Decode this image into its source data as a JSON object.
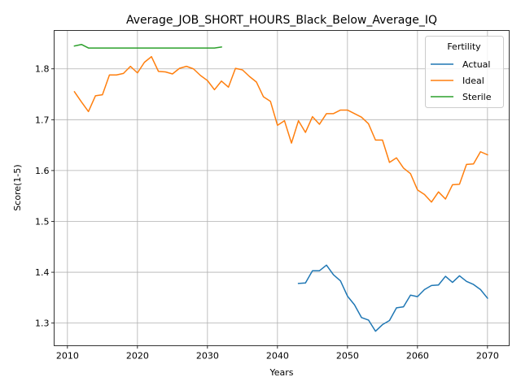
{
  "chart_data": {
    "type": "line",
    "title": "Average_JOB_SHORT_HOURS_Black_Below_Average_IQ",
    "xlabel": "Years",
    "ylabel": "Score(1-5)",
    "xlim": [
      2008.1,
      2073.1
    ],
    "ylim": [
      1.2555,
      1.8755
    ],
    "xticks": [
      2010,
      2020,
      2030,
      2040,
      2050,
      2060,
      2070
    ],
    "yticks": [
      1.3,
      1.4,
      1.5,
      1.6,
      1.7,
      1.8
    ],
    "ytick_labels": [
      "1.3",
      "1.4",
      "1.5",
      "1.6",
      "1.7",
      "1.8"
    ],
    "grid": true,
    "legend": {
      "title": "Fertility",
      "position": "top-right"
    },
    "series": [
      {
        "name": "Actual",
        "color": "#1f77b4",
        "x": [
          2043,
          2044,
          2045,
          2046,
          2047,
          2048,
          2049,
          2050,
          2051,
          2052,
          2053,
          2054,
          2055,
          2056,
          2057,
          2058,
          2059,
          2060,
          2061,
          2062,
          2063,
          2064,
          2065,
          2066,
          2067,
          2068,
          2069,
          2070
        ],
        "values": [
          1.378,
          1.379,
          1.403,
          1.403,
          1.414,
          1.395,
          1.383,
          1.353,
          1.336,
          1.311,
          1.306,
          1.284,
          1.297,
          1.305,
          1.33,
          1.332,
          1.355,
          1.352,
          1.366,
          1.374,
          1.375,
          1.392,
          1.38,
          1.393,
          1.382,
          1.376,
          1.366,
          1.349
        ]
      },
      {
        "name": "Ideal",
        "color": "#ff7f0e",
        "x": [
          2011,
          2012,
          2013,
          2014,
          2015,
          2016,
          2017,
          2018,
          2019,
          2020,
          2021,
          2022,
          2023,
          2024,
          2025,
          2026,
          2027,
          2028,
          2029,
          2030,
          2031,
          2032,
          2033,
          2034,
          2035,
          2036,
          2037,
          2038,
          2039,
          2040,
          2041,
          2042,
          2043,
          2044,
          2045,
          2046,
          2047,
          2048,
          2049,
          2050,
          2051,
          2052,
          2053,
          2054,
          2055,
          2056,
          2057,
          2058,
          2059,
          2060,
          2061,
          2062,
          2063,
          2064,
          2065,
          2066,
          2067,
          2068,
          2069,
          2070
        ],
        "values": [
          1.755,
          1.735,
          1.716,
          1.747,
          1.749,
          1.788,
          1.788,
          1.791,
          1.805,
          1.792,
          1.813,
          1.824,
          1.795,
          1.794,
          1.79,
          1.801,
          1.805,
          1.8,
          1.787,
          1.777,
          1.759,
          1.776,
          1.764,
          1.801,
          1.798,
          1.785,
          1.774,
          1.745,
          1.736,
          1.689,
          1.698,
          1.654,
          1.698,
          1.675,
          1.706,
          1.691,
          1.712,
          1.712,
          1.719,
          1.719,
          1.712,
          1.705,
          1.692,
          1.66,
          1.66,
          1.616,
          1.625,
          1.605,
          1.594,
          1.562,
          1.553,
          1.538,
          1.558,
          1.544,
          1.572,
          1.573,
          1.612,
          1.613,
          1.637,
          1.631
        ]
      },
      {
        "name": "Sterile",
        "color": "#2ca02c",
        "x": [
          2011,
          2012,
          2013,
          2014,
          2015,
          2016,
          2017,
          2018,
          2019,
          2020,
          2021,
          2022,
          2023,
          2024,
          2025,
          2026,
          2027,
          2028,
          2029,
          2030,
          2031,
          2032
        ],
        "values": [
          1.845,
          1.848,
          1.841,
          1.841,
          1.841,
          1.841,
          1.841,
          1.841,
          1.841,
          1.841,
          1.841,
          1.841,
          1.841,
          1.841,
          1.841,
          1.841,
          1.841,
          1.841,
          1.841,
          1.841,
          1.841,
          1.843
        ]
      }
    ]
  }
}
